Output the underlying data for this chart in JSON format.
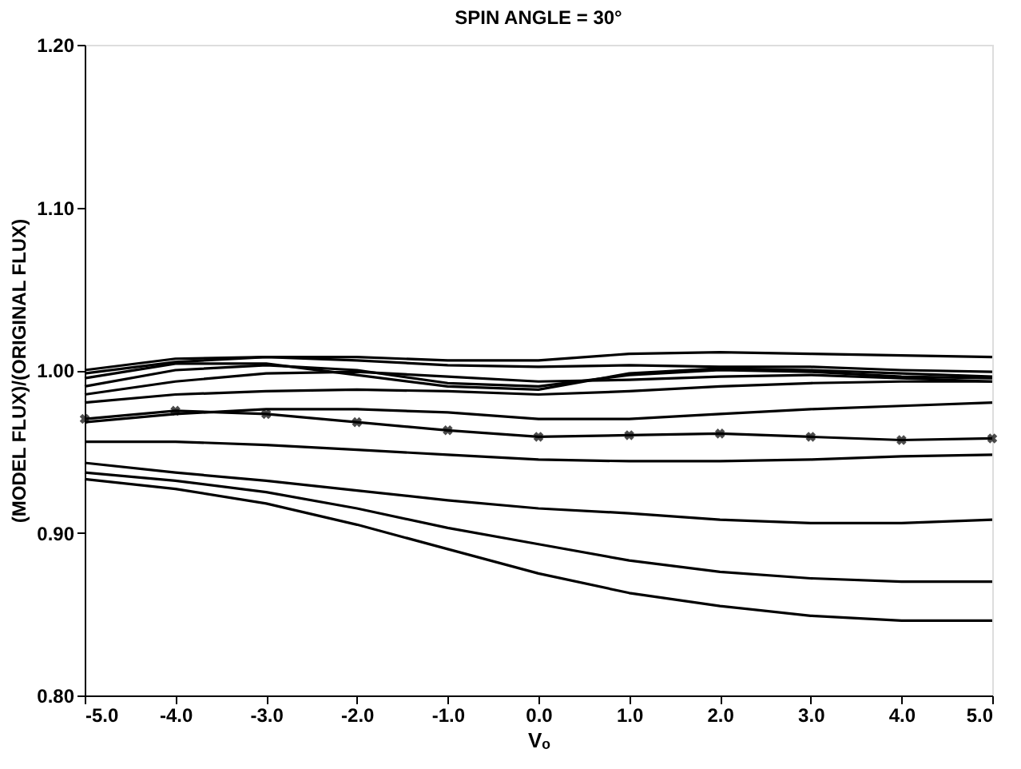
{
  "chart_data": {
    "type": "line",
    "title": "SPIN ANGLE = 30°",
    "xlabel": "Vₒ",
    "ylabel": "(MODEL FLUX)/(ORIGINAL FLUX)",
    "x": [
      -5,
      -4,
      -3,
      -2,
      -1,
      0,
      1,
      2,
      3,
      4,
      5
    ],
    "xlim": [
      -5,
      5
    ],
    "ylim": [
      0.8,
      1.2
    ],
    "xticks": [
      {
        "value": -5,
        "label": "-5.0"
      },
      {
        "value": -4,
        "label": "-4.0"
      },
      {
        "value": -3,
        "label": "-3.0"
      },
      {
        "value": -2,
        "label": "-2.0"
      },
      {
        "value": -1,
        "label": "-1.0"
      },
      {
        "value": 0,
        "label": "0.0"
      },
      {
        "value": 1,
        "label": "1.0"
      },
      {
        "value": 2,
        "label": "2.0"
      },
      {
        "value": 3,
        "label": "3.0"
      },
      {
        "value": 4,
        "label": "4.0"
      },
      {
        "value": 5,
        "label": "5.0"
      }
    ],
    "yticks": [
      {
        "value": 0.8,
        "label": "0.80"
      },
      {
        "value": 0.9,
        "label": "0.90"
      },
      {
        "value": 1.0,
        "label": "1.00"
      },
      {
        "value": 1.1,
        "label": "1.10"
      },
      {
        "value": 1.2,
        "label": "1.20"
      }
    ],
    "grid": false,
    "line_style": "solid",
    "marker": "none",
    "series": [
      {
        "color": "#000000",
        "values": [
          0.933,
          0.927,
          0.918,
          0.905,
          0.89,
          0.875,
          0.863,
          0.855,
          0.849,
          0.846,
          0.846
        ]
      },
      {
        "color": "#000000",
        "values": [
          0.937,
          0.932,
          0.925,
          0.915,
          0.903,
          0.893,
          0.883,
          0.876,
          0.872,
          0.87,
          0.87
        ]
      },
      {
        "color": "#000000",
        "values": [
          0.943,
          0.937,
          0.932,
          0.926,
          0.92,
          0.915,
          0.912,
          0.908,
          0.906,
          0.906,
          0.908
        ]
      },
      {
        "color": "#000000",
        "values": [
          0.956,
          0.956,
          0.954,
          0.951,
          0.948,
          0.945,
          0.944,
          0.944,
          0.945,
          0.947,
          0.948
        ]
      },
      {
        "color": "#000000",
        "marker": "cross",
        "values": [
          0.97,
          0.975,
          0.973,
          0.968,
          0.963,
          0.959,
          0.96,
          0.961,
          0.959,
          0.957,
          0.958
        ]
      },
      {
        "color": "#000000",
        "values": [
          0.968,
          0.973,
          0.976,
          0.976,
          0.974,
          0.97,
          0.97,
          0.973,
          0.976,
          0.978,
          0.98
        ]
      },
      {
        "color": "#000000",
        "values": [
          0.98,
          0.985,
          0.987,
          0.988,
          0.987,
          0.985,
          0.987,
          0.99,
          0.992,
          0.993,
          0.993
        ]
      },
      {
        "color": "#000000",
        "values": [
          0.985,
          0.993,
          0.998,
          0.999,
          0.996,
          0.993,
          0.994,
          0.996,
          0.997,
          0.995,
          0.993
        ]
      },
      {
        "color": "#000000",
        "values": [
          0.99,
          1.0,
          1.003,
          1.0,
          0.992,
          0.99,
          0.997,
          1.0,
          0.999,
          0.996,
          0.995
        ]
      },
      {
        "color": "#000000",
        "values": [
          0.995,
          1.004,
          1.004,
          0.997,
          0.99,
          0.988,
          0.998,
          1.001,
          1.0,
          0.998,
          0.996
        ]
      },
      {
        "color": "#000000",
        "values": [
          0.998,
          1.005,
          1.008,
          1.006,
          1.003,
          1.002,
          1.003,
          1.002,
          1.002,
          1.0,
          0.999
        ]
      },
      {
        "color": "#000000",
        "values": [
          1.0,
          1.007,
          1.008,
          1.008,
          1.006,
          1.006,
          1.01,
          1.011,
          1.01,
          1.009,
          1.008
        ]
      }
    ]
  }
}
